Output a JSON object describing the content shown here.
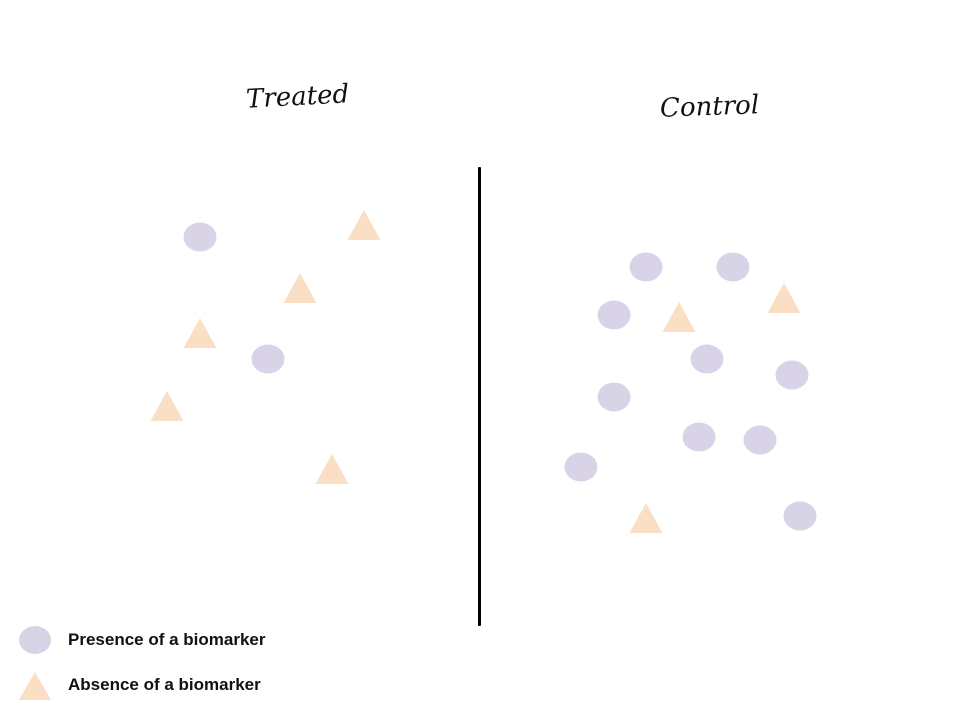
{
  "panels": {
    "treated": {
      "title": "Treated"
    },
    "control": {
      "title": "Control"
    }
  },
  "legend": {
    "presence_label": "Presence of a biomarker",
    "absence_label": "Absence of a biomarker"
  },
  "colors": {
    "presence": "#d9d3e8",
    "absence": "#fbdfc4",
    "divider": "#000000"
  },
  "counts": {
    "treated": {
      "presence": 2,
      "absence": 5
    },
    "control": {
      "presence": 10,
      "absence": 3
    }
  }
}
